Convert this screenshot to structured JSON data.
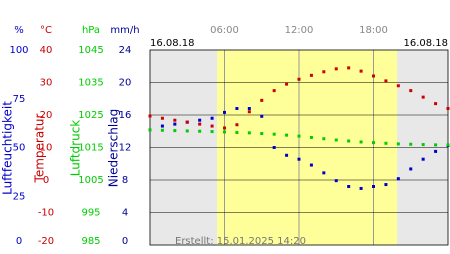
{
  "chart_data": {
    "type": "scatter",
    "date_left": "16.08.18",
    "date_right": "16.08.18",
    "credit": "Erstellt: 15.01.2025 14:20",
    "xlim": [
      0,
      24
    ],
    "xticks": [
      {
        "value": 6,
        "label": "06:00"
      },
      {
        "value": 12,
        "label": "12:00"
      },
      {
        "value": 18,
        "label": "18:00"
      }
    ],
    "daylight": [
      5.4,
      19.9
    ],
    "grid": true,
    "x": [
      0,
      1,
      2,
      3,
      4,
      5,
      6,
      7,
      8,
      9,
      10,
      11,
      12,
      13,
      14,
      15,
      16,
      17,
      18,
      19,
      20,
      21,
      22,
      23,
      24
    ],
    "axes": [
      {
        "label": "Luftfeuchtigkeit",
        "unit": "%",
        "color": "#0000cc",
        "ylim": [
          0,
          100
        ],
        "yticks": [
          0,
          25,
          50,
          75,
          100
        ]
      },
      {
        "label": "Temperatur",
        "unit": "°C",
        "color": "#cc0000",
        "ylim": [
          -20,
          40
        ],
        "yticks": [
          -20,
          -10,
          0,
          10,
          20,
          30,
          40
        ]
      },
      {
        "label": "Luftdruck",
        "unit": "hPa",
        "color": "#00cc00",
        "ylim": [
          985,
          1045
        ],
        "yticks": [
          985,
          995,
          1005,
          1015,
          1025,
          1035,
          1045
        ]
      },
      {
        "label": "Niederschlag",
        "unit": "mm/h",
        "color": "#000099",
        "ylim": [
          0,
          24
        ],
        "yticks": [
          0,
          4,
          8,
          12,
          16,
          20,
          24
        ]
      }
    ],
    "series": [
      {
        "axis": 0,
        "color": "#0000cc",
        "values": [
          59,
          61,
          62,
          63,
          64,
          65,
          68,
          70,
          70,
          66,
          50,
          46,
          44,
          41,
          37,
          33,
          30,
          29,
          30,
          31,
          34,
          39,
          44,
          48,
          51
        ]
      },
      {
        "axis": 1,
        "color": "#cc0000",
        "values": [
          19.7,
          19,
          18.4,
          17.8,
          17.2,
          16.6,
          16,
          17,
          21,
          24.5,
          27.5,
          29.5,
          31,
          32.2,
          33.3,
          34.2,
          34.5,
          33.5,
          32,
          30.5,
          29,
          27.5,
          25.5,
          23.5,
          22
        ]
      },
      {
        "axis": 2,
        "color": "#00cc00",
        "values": [
          1020.4,
          1020.3,
          1020.2,
          1020.1,
          1020,
          1019.9,
          1019.8,
          1019.6,
          1019.5,
          1019.3,
          1019.1,
          1018.8,
          1018.5,
          1018.1,
          1017.7,
          1017.3,
          1017,
          1016.7,
          1016.5,
          1016.3,
          1016.1,
          1016,
          1015.9,
          1015.8,
          1015.8
        ]
      }
    ]
  }
}
